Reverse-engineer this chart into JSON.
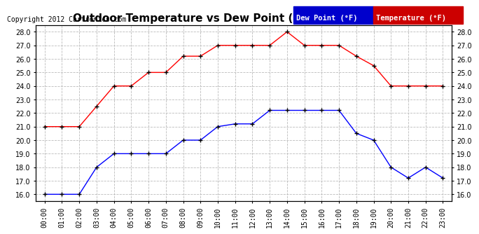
{
  "title": "Outdoor Temperature vs Dew Point (24 Hours) 20121224",
  "copyright": "Copyright 2012 Cartronics.com",
  "hours": [
    "00:00",
    "01:00",
    "02:00",
    "03:00",
    "04:00",
    "05:00",
    "06:00",
    "07:00",
    "08:00",
    "09:00",
    "10:00",
    "11:00",
    "12:00",
    "13:00",
    "14:00",
    "15:00",
    "16:00",
    "17:00",
    "18:00",
    "19:00",
    "20:00",
    "21:00",
    "22:00",
    "23:00"
  ],
  "temperature": [
    21.0,
    21.0,
    21.0,
    22.5,
    24.0,
    24.0,
    25.0,
    25.0,
    26.2,
    26.2,
    27.0,
    27.0,
    27.0,
    27.0,
    28.0,
    27.0,
    27.0,
    27.0,
    26.2,
    25.5,
    24.0,
    24.0,
    24.0,
    24.0
  ],
  "dew_point": [
    16.0,
    16.0,
    16.0,
    18.0,
    19.0,
    19.0,
    19.0,
    19.0,
    20.0,
    20.0,
    21.0,
    21.2,
    21.2,
    22.2,
    22.2,
    22.2,
    22.2,
    22.2,
    20.5,
    20.0,
    18.0,
    17.2,
    18.0,
    17.2
  ],
  "temp_color": "#ff0000",
  "dew_color": "#0000ff",
  "marker_color": "#000000",
  "ylim": [
    15.5,
    28.5
  ],
  "yticks": [
    16.0,
    17.0,
    18.0,
    19.0,
    20.0,
    21.0,
    22.0,
    23.0,
    24.0,
    25.0,
    26.0,
    27.0,
    28.0
  ],
  "bg_color": "#ffffff",
  "plot_bg_color": "#ffffff",
  "grid_color": "#bbbbbb",
  "title_fontsize": 11,
  "copyright_fontsize": 7,
  "tick_fontsize": 7,
  "legend_dew_label": "Dew Point (°F)",
  "legend_temp_label": "Temperature (°F)",
  "legend_dew_bg": "#0000cc",
  "legend_temp_bg": "#cc0000"
}
